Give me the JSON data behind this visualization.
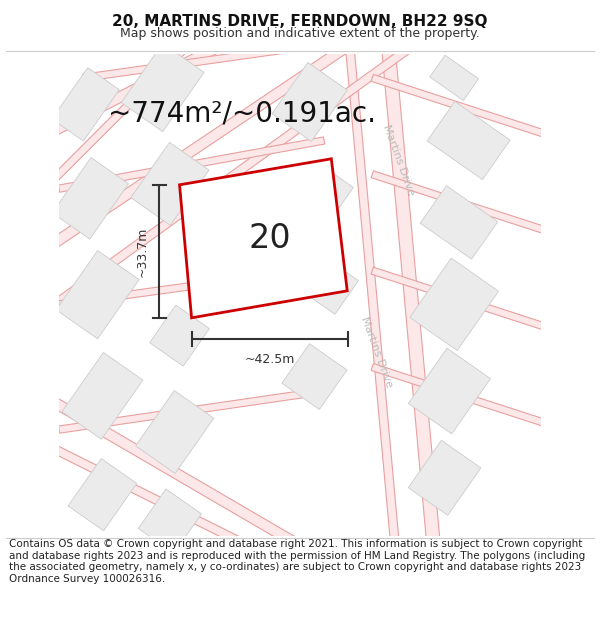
{
  "title": "20, MARTINS DRIVE, FERNDOWN, BH22 9SQ",
  "subtitle": "Map shows position and indicative extent of the property.",
  "footer": "Contains OS data © Crown copyright and database right 2021. This information is subject to Crown copyright and database rights 2023 and is reproduced with the permission of HM Land Registry. The polygons (including the associated geometry, namely x, y co-ordinates) are subject to Crown copyright and database rights 2023 Ordnance Survey 100026316.",
  "area_text": "~774m²/~0.191ac.",
  "width_text": "~42.5m",
  "height_text": "~33.7m",
  "property_number": "20",
  "background_color": "#ffffff",
  "road_line_color": "#e8a0a0",
  "road_fill_color": "#fce8e8",
  "building_fill_color": "#ebebeb",
  "building_edge_color": "#cccccc",
  "property_fill_color": "#ffffff",
  "property_edge_color": "#cc0000",
  "road_label_color": "#bbbbbb",
  "dim_color": "#333333",
  "title_fontsize": 11,
  "subtitle_fontsize": 9,
  "footer_fontsize": 7.5,
  "area_fontsize": 20,
  "number_fontsize": 24,
  "dim_fontsize": 9,
  "road_label_fontsize": 8
}
